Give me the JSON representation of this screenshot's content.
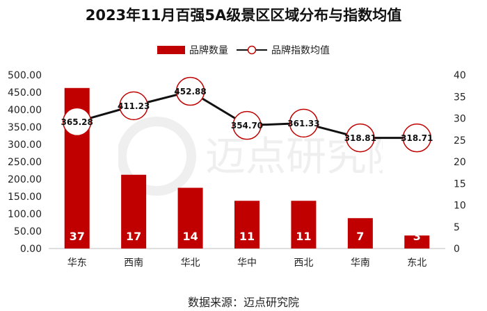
{
  "title": "2023年11月百强5A级景区区域分布与指数均值",
  "source": "数据来源：迈点研究院",
  "watermark": "迈点研究院",
  "chart_data": {
    "type": "bar",
    "categories": [
      "华东",
      "西南",
      "华北",
      "华中",
      "西北",
      "华南",
      "东北"
    ],
    "series": [
      {
        "name": "品牌数量",
        "type": "bar",
        "axis": "right",
        "color": "#c00000",
        "values": [
          37,
          17,
          14,
          11,
          11,
          7,
          3
        ]
      },
      {
        "name": "品牌指数均值",
        "type": "line",
        "axis": "left",
        "color": "#111111",
        "values": [
          365.28,
          411.23,
          452.88,
          354.7,
          361.33,
          318.81,
          318.71
        ]
      }
    ],
    "left_ticks": [
      "500.00",
      "450.00",
      "400.00",
      "350.00",
      "300.00",
      "250.00",
      "200.00",
      "150.00",
      "100.00",
      "50.00",
      "0.00"
    ],
    "right_ticks": [
      "40",
      "35",
      "30",
      "25",
      "20",
      "15",
      "10",
      "5",
      "0"
    ],
    "ylim_left": [
      0,
      500
    ],
    "ylim_right": [
      0,
      40
    ],
    "line_labels": [
      "365.28",
      "411.23",
      "452.88",
      "354.70",
      "361.33",
      "318.81",
      "318.71"
    ],
    "bar_labels": [
      "37",
      "17",
      "14",
      "11",
      "11",
      "7",
      "3"
    ],
    "grid": false,
    "legend_position": "top-center"
  }
}
